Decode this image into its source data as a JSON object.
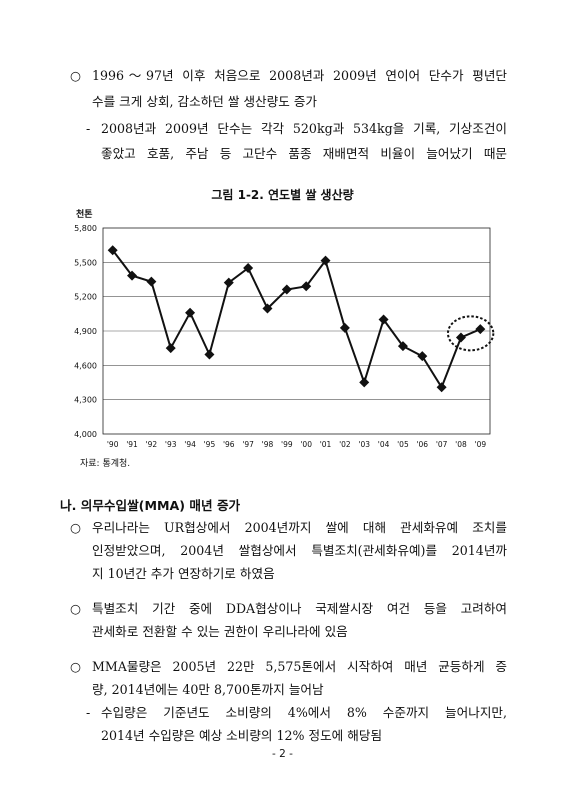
{
  "section1": {
    "bullet1_marker": "○",
    "bullet1_line1": "1996～97년 이후 처음으로 2008년과 2009년 연이어 단수가 평년단",
    "bullet1_line2": "수를 크게 상회, 감소하던 쌀 생산량도 증가",
    "sub1_marker": "-",
    "sub1_line1": "2008년과 2009년 단수는 각각 520kg과 534kg을 기록, 기상조건이",
    "sub1_line2": "좋았고 호품, 주남 등 고단수 품종 재배면적 비율이 늘어났기 때문"
  },
  "figure": {
    "caption": "그림 1-2. 연도별 쌀 생산량",
    "unit": "천톤",
    "source": "자료: 통계청."
  },
  "chart_data": {
    "type": "line",
    "title": "그림 1-2. 연도별 쌀 생산량",
    "ylabel": "천톤",
    "xlabel": "",
    "categories": [
      "'90",
      "'91",
      "'92",
      "'93",
      "'94",
      "'95",
      "'96",
      "'97",
      "'98",
      "'99",
      "'00",
      "'01",
      "'02",
      "'03",
      "'04",
      "'05",
      "'06",
      "'07",
      "'08",
      "'09"
    ],
    "values": [
      5606,
      5384,
      5331,
      4750,
      5060,
      4695,
      5323,
      5450,
      5097,
      5263,
      5291,
      5515,
      4927,
      4451,
      5000,
      4768,
      4680,
      4408,
      4843,
      4916
    ],
    "ylim": [
      4000,
      5800
    ],
    "yticks": [
      "4,000",
      "4,300",
      "4,600",
      "4,900",
      "5,200",
      "5,500",
      "5,800"
    ],
    "ytick_values": [
      4000,
      4300,
      4600,
      4900,
      5200,
      5500,
      5800
    ],
    "grid": true,
    "highlight_categories": [
      "'08",
      "'09"
    ]
  },
  "section2": {
    "heading": "나. 의무수입쌀(MMA) 매년 증가",
    "b1_marker": "○",
    "b1_line1": "우리나라는 UR협상에서 2004년까지 쌀에 대해 관세화유예 조치를",
    "b1_line2": "인정받았으며, 2004년 쌀협상에서 특별조치(관세화유예)를 2014년까",
    "b1_line3": "지 10년간 추가 연장하기로 하였음",
    "b2_marker": "○",
    "b2_line1": "특별조치 기간 중에 DDA협상이나 국제쌀시장 여건 등을 고려하여",
    "b2_line2": "관세화로 전환할 수 있는 권한이 우리나라에 있음",
    "b3_marker": "○",
    "b3_line1": "MMA물량은 2005년 22만 5,575톤에서 시작하여 매년 균등하게 증",
    "b3_line2": "량, 2014년에는 40만 8,700톤까지 늘어남",
    "sub_marker": "-",
    "sub_line1": "수입량은 기준년도 소비량의 4%에서 8% 수준까지 늘어나지만,",
    "sub_line2": "2014년 수입량은 예상 소비량의 12% 정도에 해당됨"
  },
  "footer": {
    "page_number": "- 2 -"
  }
}
